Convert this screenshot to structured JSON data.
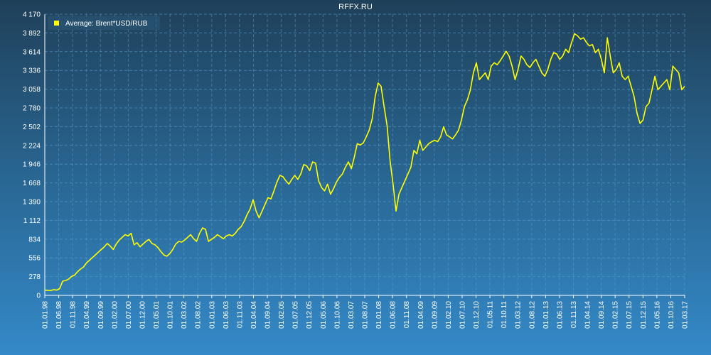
{
  "chart_data": {
    "type": "line",
    "title": "RFFX.RU",
    "xlabel": "",
    "ylabel": "",
    "ylim": [
      0,
      4170
    ],
    "yticks": [
      "0",
      "278",
      "556",
      "834",
      "1 112",
      "1 390",
      "1 668",
      "1 946",
      "2 224",
      "2 502",
      "2 780",
      "3 058",
      "3 336",
      "3 614",
      "3 892",
      "4 170"
    ],
    "xticks": [
      "01.01.98",
      "01.06.98",
      "01.11.98",
      "01.04.99",
      "01.09.99",
      "01.02.00",
      "01.07.00",
      "01.12.00",
      "01.05.01",
      "01.10.01",
      "01.03.02",
      "01.08.02",
      "01.01.03",
      "01.06.03",
      "01.11.03",
      "01.04.04",
      "01.09.04",
      "01.02.05",
      "01.07.05",
      "01.12.05",
      "01.05.06",
      "01.10.06",
      "01.03.07",
      "01.08.07",
      "01.01.08",
      "01.06.08",
      "01.11.08",
      "01.04.09",
      "01.09.09",
      "01.02.10",
      "01.07.10",
      "01.12.10",
      "01.05.11",
      "01.10.11",
      "01.03.12",
      "01.08.12",
      "01.01.13",
      "01.06.13",
      "01.11.13",
      "01.04.14",
      "01.09.14",
      "01.02.15",
      "01.07.15",
      "01.12.15",
      "01.05.16",
      "01.10.16",
      "01.03.17"
    ],
    "grid": true,
    "legend_position": "top-left",
    "series": [
      {
        "name": "Average: Brent*USD/RUB",
        "color": "#ffff00",
        "points": [
          [
            0,
            80
          ],
          [
            1,
            75
          ],
          [
            2,
            72
          ],
          [
            3,
            85
          ],
          [
            4,
            78
          ],
          [
            5,
            100
          ],
          [
            6,
            210
          ],
          [
            7,
            220
          ],
          [
            8,
            240
          ],
          [
            9,
            280
          ],
          [
            10,
            300
          ],
          [
            11,
            350
          ],
          [
            12,
            390
          ],
          [
            13,
            420
          ],
          [
            14,
            480
          ],
          [
            15,
            520
          ],
          [
            16,
            560
          ],
          [
            17,
            600
          ],
          [
            18,
            640
          ],
          [
            19,
            680
          ],
          [
            20,
            720
          ],
          [
            21,
            770
          ],
          [
            22,
            730
          ],
          [
            23,
            680
          ],
          [
            24,
            760
          ],
          [
            25,
            820
          ],
          [
            26,
            860
          ],
          [
            27,
            900
          ],
          [
            28,
            880
          ],
          [
            29,
            920
          ],
          [
            30,
            750
          ],
          [
            31,
            780
          ],
          [
            32,
            720
          ],
          [
            33,
            760
          ],
          [
            34,
            800
          ],
          [
            35,
            830
          ],
          [
            36,
            770
          ],
          [
            37,
            750
          ],
          [
            38,
            710
          ],
          [
            39,
            650
          ],
          [
            40,
            600
          ],
          [
            41,
            580
          ],
          [
            42,
            620
          ],
          [
            43,
            680
          ],
          [
            44,
            760
          ],
          [
            45,
            800
          ],
          [
            46,
            790
          ],
          [
            47,
            820
          ],
          [
            48,
            860
          ],
          [
            49,
            900
          ],
          [
            50,
            840
          ],
          [
            51,
            800
          ],
          [
            52,
            920
          ],
          [
            53,
            1000
          ],
          [
            54,
            980
          ],
          [
            55,
            800
          ],
          [
            56,
            830
          ],
          [
            57,
            860
          ],
          [
            58,
            900
          ],
          [
            59,
            870
          ],
          [
            60,
            840
          ],
          [
            61,
            880
          ],
          [
            62,
            900
          ],
          [
            63,
            880
          ],
          [
            64,
            920
          ],
          [
            65,
            980
          ],
          [
            66,
            1020
          ],
          [
            67,
            1100
          ],
          [
            68,
            1200
          ],
          [
            69,
            1280
          ],
          [
            70,
            1420
          ],
          [
            71,
            1250
          ],
          [
            72,
            1150
          ],
          [
            73,
            1250
          ],
          [
            74,
            1350
          ],
          [
            75,
            1450
          ],
          [
            76,
            1430
          ],
          [
            77,
            1550
          ],
          [
            78,
            1680
          ],
          [
            79,
            1780
          ],
          [
            80,
            1760
          ],
          [
            81,
            1700
          ],
          [
            82,
            1650
          ],
          [
            83,
            1720
          ],
          [
            84,
            1780
          ],
          [
            85,
            1720
          ],
          [
            86,
            1800
          ],
          [
            87,
            1940
          ],
          [
            88,
            1920
          ],
          [
            89,
            1850
          ],
          [
            90,
            1980
          ],
          [
            91,
            1960
          ],
          [
            92,
            1700
          ],
          [
            93,
            1600
          ],
          [
            94,
            1550
          ],
          [
            95,
            1650
          ],
          [
            96,
            1500
          ],
          [
            97,
            1580
          ],
          [
            98,
            1680
          ],
          [
            99,
            1750
          ],
          [
            100,
            1800
          ],
          [
            101,
            1900
          ],
          [
            102,
            1980
          ],
          [
            103,
            1880
          ],
          [
            104,
            2050
          ],
          [
            105,
            2250
          ],
          [
            106,
            2230
          ],
          [
            107,
            2260
          ],
          [
            108,
            2350
          ],
          [
            109,
            2450
          ],
          [
            110,
            2620
          ],
          [
            111,
            2950
          ],
          [
            112,
            3150
          ],
          [
            113,
            3100
          ],
          [
            114,
            2800
          ],
          [
            115,
            2520
          ],
          [
            116,
            2000
          ],
          [
            117,
            1650
          ],
          [
            118,
            1250
          ],
          [
            119,
            1500
          ],
          [
            120,
            1600
          ],
          [
            121,
            1700
          ],
          [
            122,
            1800
          ],
          [
            123,
            1900
          ],
          [
            124,
            2150
          ],
          [
            125,
            2100
          ],
          [
            126,
            2300
          ],
          [
            127,
            2150
          ],
          [
            128,
            2200
          ],
          [
            129,
            2250
          ],
          [
            130,
            2280
          ],
          [
            131,
            2300
          ],
          [
            132,
            2280
          ],
          [
            133,
            2350
          ],
          [
            134,
            2500
          ],
          [
            135,
            2380
          ],
          [
            136,
            2350
          ],
          [
            137,
            2320
          ],
          [
            138,
            2380
          ],
          [
            139,
            2450
          ],
          [
            140,
            2600
          ],
          [
            141,
            2800
          ],
          [
            142,
            2900
          ],
          [
            143,
            3050
          ],
          [
            144,
            3300
          ],
          [
            145,
            3450
          ],
          [
            146,
            3200
          ],
          [
            147,
            3250
          ],
          [
            148,
            3300
          ],
          [
            149,
            3200
          ],
          [
            150,
            3400
          ],
          [
            151,
            3450
          ],
          [
            152,
            3420
          ],
          [
            153,
            3480
          ],
          [
            154,
            3550
          ],
          [
            155,
            3620
          ],
          [
            156,
            3550
          ],
          [
            157,
            3400
          ],
          [
            158,
            3200
          ],
          [
            159,
            3350
          ],
          [
            160,
            3550
          ],
          [
            161,
            3500
          ],
          [
            162,
            3420
          ],
          [
            163,
            3380
          ],
          [
            164,
            3450
          ],
          [
            165,
            3500
          ],
          [
            166,
            3400
          ],
          [
            167,
            3300
          ],
          [
            168,
            3250
          ],
          [
            169,
            3350
          ],
          [
            170,
            3500
          ],
          [
            171,
            3600
          ],
          [
            172,
            3580
          ],
          [
            173,
            3500
          ],
          [
            174,
            3550
          ],
          [
            175,
            3650
          ],
          [
            176,
            3600
          ],
          [
            177,
            3750
          ],
          [
            178,
            3880
          ],
          [
            179,
            3850
          ],
          [
            180,
            3800
          ],
          [
            181,
            3820
          ],
          [
            182,
            3750
          ],
          [
            183,
            3700
          ],
          [
            184,
            3720
          ],
          [
            185,
            3600
          ],
          [
            186,
            3650
          ],
          [
            187,
            3500
          ],
          [
            188,
            3300
          ],
          [
            189,
            3820
          ],
          [
            190,
            3550
          ],
          [
            191,
            3300
          ],
          [
            192,
            3350
          ],
          [
            193,
            3450
          ],
          [
            194,
            3250
          ],
          [
            195,
            3200
          ],
          [
            196,
            3250
          ],
          [
            197,
            3100
          ],
          [
            198,
            2950
          ],
          [
            199,
            2700
          ],
          [
            200,
            2550
          ],
          [
            201,
            2600
          ],
          [
            202,
            2800
          ],
          [
            203,
            2850
          ],
          [
            204,
            3050
          ],
          [
            205,
            3250
          ],
          [
            206,
            3050
          ],
          [
            207,
            3100
          ],
          [
            208,
            3150
          ],
          [
            209,
            3200
          ],
          [
            210,
            3050
          ],
          [
            211,
            3400
          ],
          [
            212,
            3350
          ],
          [
            213,
            3300
          ],
          [
            214,
            3050
          ],
          [
            215,
            3100
          ]
        ]
      }
    ]
  }
}
